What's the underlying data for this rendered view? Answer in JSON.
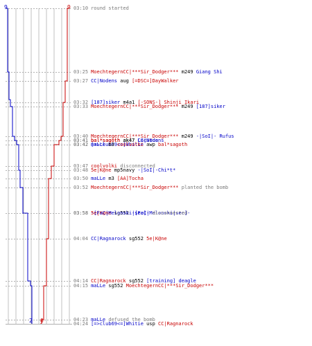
{
  "colors": {
    "team_blue": "#0000c8",
    "team_red": "#c80000",
    "text_gray": "#7a7a7a",
    "weapon": "#000000",
    "grid_line": "#c0c0c0",
    "guide_line": "#b0b0b0"
  },
  "counts": {
    "blue_start": "9",
    "red_start": "9",
    "blue_end": "2",
    "red_end": "0"
  },
  "events": [
    {
      "time": "03:10",
      "parts": [
        {
          "text": "round started",
          "kind": "msg"
        }
      ]
    },
    {
      "time": "03:25",
      "parts": [
        {
          "text": "MoechtegernCC|***Sir_Dodger***",
          "kind": "red"
        },
        {
          "text": " m249 ",
          "kind": "wp"
        },
        {
          "text": "Giang Shi",
          "kind": "blue"
        }
      ]
    },
    {
      "time": "03:27",
      "parts": [
        {
          "text": "CC|Nodens",
          "kind": "blue"
        },
        {
          "text": " aug ",
          "kind": "wp"
        },
        {
          "text": "[=DSC=]DayWalker",
          "kind": "red"
        }
      ]
    },
    {
      "time": "03:32",
      "parts": [
        {
          "text": "[187]siker",
          "kind": "blue"
        },
        {
          "text": " m4a1 ",
          "kind": "wp"
        },
        {
          "text": "[-SONS-] Shinji_Ikari",
          "kind": "red"
        }
      ]
    },
    {
      "time": "03:33",
      "parts": [
        {
          "text": "MoechtegernCC|***Sir_Dodger***",
          "kind": "red"
        },
        {
          "text": " m249 ",
          "kind": "wp"
        },
        {
          "text": "[187]siker",
          "kind": "blue"
        }
      ]
    },
    {
      "time": "03:40",
      "parts": [
        {
          "text": "MoechtegernCC|***Sir_Dodger***",
          "kind": "red"
        },
        {
          "text": " m249 ",
          "kind": "wp"
        },
        {
          "text": "-|SoI|- Rufus",
          "kind": "blue"
        }
      ]
    },
    {
      "time": "03:41",
      "parts": [
        {
          "text": "bal*sagoth",
          "kind": "red"
        },
        {
          "text": " ak47 ",
          "kind": "wp"
        },
        {
          "text": "CC|Nodens",
          "kind": "blue"
        }
      ]
    },
    {
      "time": "03:41",
      "parts": [
        {
          "text": "bal*sagoth",
          "kind": "red"
        },
        {
          "text": " ak47 ",
          "kind": "wp"
        },
        {
          "text": "Lacutus",
          "kind": "blue"
        }
      ]
    },
    {
      "time": "03:42",
      "parts": [
        {
          "text": "[=>club69<=]Whitie",
          "kind": "blue"
        },
        {
          "text": " awp ",
          "kind": "wp"
        },
        {
          "text": "bal*sagoth",
          "kind": "red"
        }
      ]
    },
    {
      "time": "03:42",
      "parts": [
        {
          "text": "maLLe",
          "kind": "blue"
        },
        {
          "text": " m3 ",
          "kind": "wp"
        },
        {
          "text": "coolvolki",
          "kind": "red"
        }
      ]
    },
    {
      "time": "03:47",
      "parts": [
        {
          "text": "coolvolki",
          "kind": "red"
        },
        {
          "text": " disconnected",
          "kind": "msg"
        }
      ]
    },
    {
      "time": "03:48",
      "parts": [
        {
          "text": "5e|K@ne",
          "kind": "red"
        },
        {
          "text": " mp5navy ",
          "kind": "wp"
        },
        {
          "text": "-|SoI|-Chi*t*",
          "kind": "blue"
        }
      ]
    },
    {
      "time": "03:50",
      "parts": [
        {
          "text": "maLLe",
          "kind": "blue"
        },
        {
          "text": " m3 ",
          "kind": "wp"
        },
        {
          "text": "[AA]Tocha",
          "kind": "red"
        }
      ]
    },
    {
      "time": "03:52",
      "parts": [
        {
          "text": "MoechtegernCC|***Sir_Dodger***",
          "kind": "red"
        },
        {
          "text": " planted the bomb",
          "kind": "msg"
        }
      ]
    },
    {
      "time": "03:58",
      "parts": [
        {
          "text": "5e|K@ne",
          "kind": "red"
        },
        {
          "text": " sg552 ",
          "kind": "wp"
        },
        {
          "text": "-[FaC|Melonski|sec]-",
          "kind": "blue"
        }
      ]
    },
    {
      "time": "03:58",
      "parts": [
        {
          "text": "-[FaC|Melonski|sec]-",
          "kind": "blue"
        },
        {
          "text": " disconnected",
          "kind": "msg"
        }
      ]
    },
    {
      "time": "04:04",
      "parts": [
        {
          "text": "CC|Ragnarock",
          "kind": "blue"
        },
        {
          "text": " sg552 ",
          "kind": "wp"
        },
        {
          "text": "5e|K@ne",
          "kind": "red"
        }
      ]
    },
    {
      "time": "04:14",
      "parts": [
        {
          "text": "CC|Ragnarock",
          "kind": "red"
        },
        {
          "text": " sg552 ",
          "kind": "wp"
        },
        {
          "text": "[training] deagle",
          "kind": "blue"
        }
      ]
    },
    {
      "time": "04:15",
      "parts": [
        {
          "text": "maLLe",
          "kind": "blue"
        },
        {
          "text": " sg552 ",
          "kind": "wp"
        },
        {
          "text": "MoechtegernCC|***Sir_Dodger***",
          "kind": "red"
        }
      ]
    },
    {
      "time": "04:23",
      "parts": [
        {
          "text": "maLLe",
          "kind": "blue"
        },
        {
          "text": " defused the bomb",
          "kind": "msg"
        }
      ]
    },
    {
      "time": "04:24",
      "parts": [
        {
          "text": "[=>club69<=]Whitie",
          "kind": "blue"
        },
        {
          "text": " usp ",
          "kind": "wp"
        },
        {
          "text": "CC|Ragnarock",
          "kind": "red"
        }
      ]
    }
  ]
}
